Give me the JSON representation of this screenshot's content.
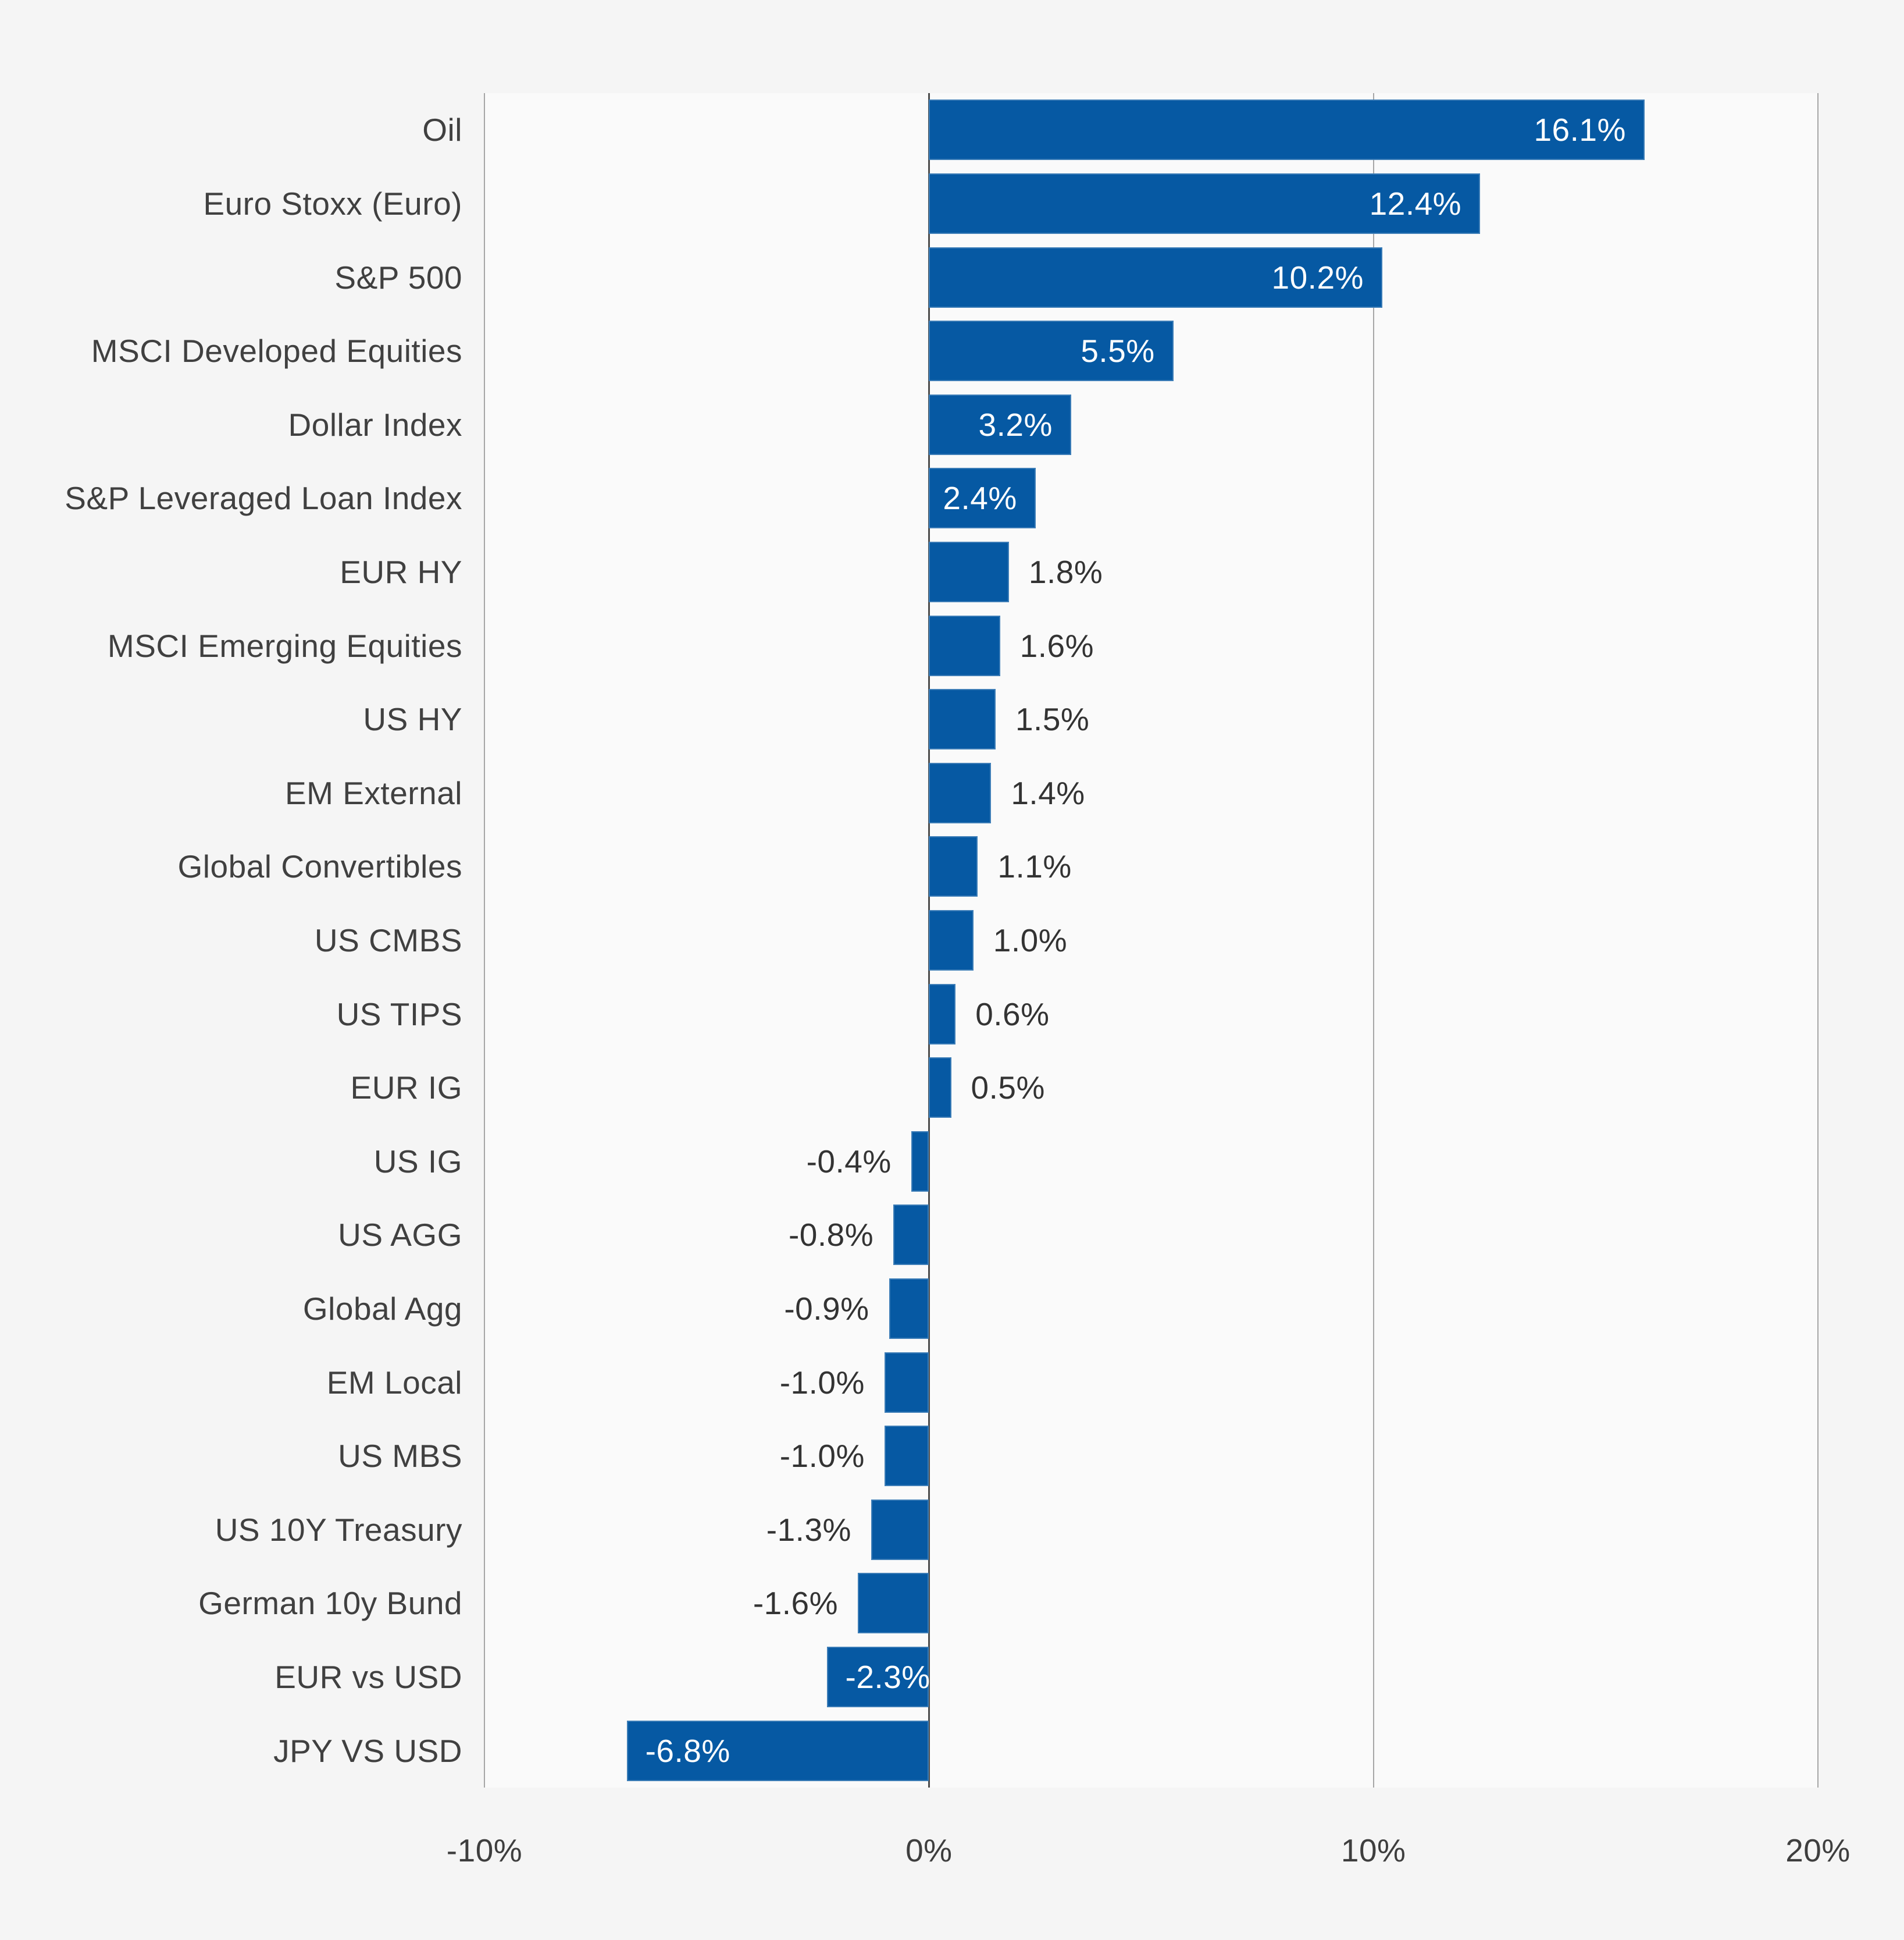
{
  "chart_data": {
    "type": "bar",
    "orientation": "horizontal",
    "title": "",
    "xlabel": "",
    "ylabel": "",
    "categories": [
      "Oil",
      "Euro Stoxx (Euro)",
      "S&P 500",
      "MSCI Developed Equities",
      "Dollar Index",
      "S&P Leveraged Loan Index",
      "EUR HY",
      "MSCI Emerging Equities",
      "US HY",
      "EM External",
      "Global Convertibles",
      "US CMBS",
      "US TIPS",
      "EUR IG",
      "US IG",
      "US AGG",
      "Global Agg",
      "EM Local",
      "US MBS",
      "US 10Y Treasury",
      "German 10y Bund",
      "EUR vs USD",
      "JPY VS USD"
    ],
    "values": [
      16.1,
      12.4,
      10.2,
      5.5,
      3.2,
      2.4,
      1.8,
      1.6,
      1.5,
      1.4,
      1.1,
      1.0,
      0.6,
      0.5,
      -0.4,
      -0.8,
      -0.9,
      -1.0,
      -1.0,
      -1.3,
      -1.6,
      -2.3,
      -6.8
    ],
    "labels": [
      "16.1%",
      "12.4%",
      "10.2%",
      "5.5%",
      "3.2%",
      "2.4%",
      "1.8%",
      "1.6%",
      "1.5%",
      "1.4%",
      "1.1%",
      "1.0%",
      "0.6%",
      "0.5%",
      "-0.4%",
      "-0.8%",
      "-0.9%",
      "-1.0%",
      "-1.0%",
      "-1.3%",
      "-1.6%",
      "-2.3%",
      "-6.8%"
    ],
    "x_ticks": [
      {
        "value": -10,
        "label": "-10%"
      },
      {
        "value": 0,
        "label": "0%"
      },
      {
        "value": 10,
        "label": "10%"
      },
      {
        "value": 20,
        "label": "20%"
      }
    ],
    "xlim": [
      -10,
      20
    ],
    "grid": true,
    "legend": "none",
    "bar_color": "#0659a3",
    "value_label_color_inside": "#ffffff",
    "value_label_color_outside": "#333333",
    "inside_label_threshold_abs_pct": 2.3
  }
}
